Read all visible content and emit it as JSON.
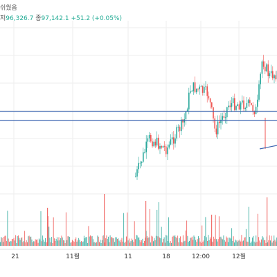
{
  "legend": {
    "status_text": "쉬웠음",
    "low_label": "저",
    "low_value": "96,326.7",
    "close_label": "종",
    "close_value": "97,142.1",
    "change": "+51.2 (+0.05%)"
  },
  "x_axis_labels": [
    "21",
    "11월",
    "11",
    "18",
    "12:00",
    "12월"
  ],
  "colors": {
    "up": "#26a69a",
    "down": "#ef5350",
    "hline": "#3a64b0",
    "trendline": "#3a64b0",
    "grid": "#eeeeee"
  }
}
